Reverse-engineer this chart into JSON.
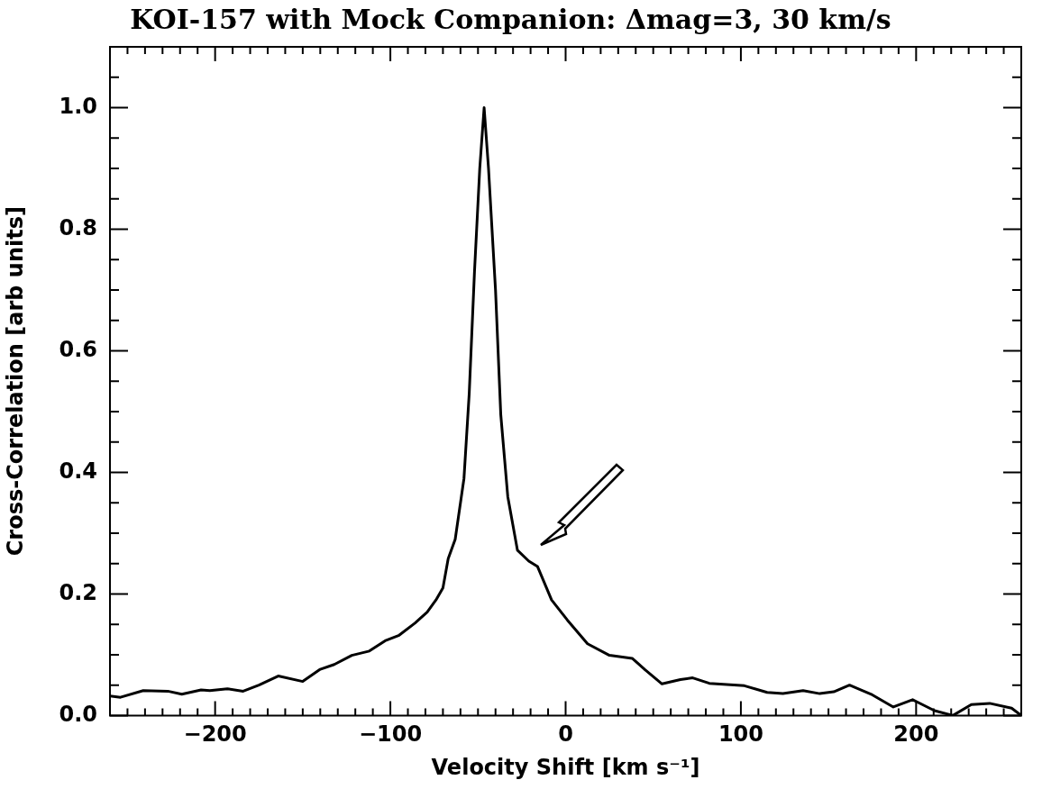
{
  "chart_data": {
    "type": "line",
    "title": "KOI-157 with Mock Companion: Δmag=3, 30 km/s",
    "xlabel": "Velocity Shift [km s⁻¹]",
    "ylabel": "Cross-Correlation [arb units]",
    "x": [
      -260,
      -254,
      -241,
      -227,
      -219,
      -208,
      -203,
      -193,
      -184,
      -175,
      -164,
      -150,
      -140,
      -132,
      -122,
      -112,
      -103,
      -95,
      -86,
      -79,
      -74,
      -70,
      -67,
      -63,
      -58,
      -55,
      -52,
      -49,
      -46.5,
      -44,
      -40,
      -37,
      -33,
      -27.5,
      -21,
      -16,
      -8,
      1,
      12.5,
      25,
      38,
      45.5,
      55,
      65.5,
      72.5,
      82,
      102,
      115,
      124,
      135.5,
      145,
      153,
      162,
      175,
      187,
      198,
      210.5,
      221,
      231.5,
      242,
      254.5,
      260
    ],
    "series": [
      {
        "color": "#000000",
        "values": [
          0.032,
          0.03,
          0.041,
          0.04,
          0.035,
          0.042,
          0.041,
          0.044,
          0.04,
          0.05,
          0.065,
          0.056,
          0.076,
          0.084,
          0.099,
          0.106,
          0.123,
          0.132,
          0.152,
          0.17,
          0.19,
          0.21,
          0.258,
          0.29,
          0.39,
          0.53,
          0.73,
          0.9,
          1.0,
          0.9,
          0.7,
          0.495,
          0.36,
          0.272,
          0.254,
          0.245,
          0.19,
          0.157,
          0.118,
          0.099,
          0.094,
          0.075,
          0.052,
          0.059,
          0.062,
          0.053,
          0.049,
          0.038,
          0.036,
          0.041,
          0.036,
          0.039,
          0.05,
          0.034,
          0.014,
          0.026,
          0.008,
          0.0,
          0.018,
          0.02,
          0.012,
          0.0
        ]
      }
    ],
    "xlim": [
      -260,
      260
    ],
    "xticks": [
      {
        "value": -260,
        "label": null
      },
      {
        "value": -250,
        "label": null
      },
      {
        "value": -240,
        "label": null
      },
      {
        "value": -230,
        "label": null
      },
      {
        "value": -220,
        "label": null
      },
      {
        "value": -210,
        "label": null
      },
      -200,
      {
        "value": -190,
        "label": null
      },
      {
        "value": -180,
        "label": null
      },
      {
        "value": -170,
        "label": null
      },
      {
        "value": -160,
        "label": null
      },
      {
        "value": -150,
        "label": null
      },
      {
        "value": -140,
        "label": null
      },
      {
        "value": -130,
        "label": null
      },
      {
        "value": -120,
        "label": null
      },
      {
        "value": -110,
        "label": null
      },
      -100,
      {
        "value": -90,
        "label": null
      },
      {
        "value": -80,
        "label": null
      },
      {
        "value": -70,
        "label": null
      },
      {
        "value": -60,
        "label": null
      },
      {
        "value": -50,
        "label": null
      },
      {
        "value": -40,
        "label": null
      },
      {
        "value": -30,
        "label": null
      },
      {
        "value": -20,
        "label": null
      },
      {
        "value": -10,
        "label": null
      },
      0,
      {
        "value": 10,
        "label": null
      },
      {
        "value": 20,
        "label": null
      },
      {
        "value": 30,
        "label": null
      },
      {
        "value": 40,
        "label": null
      },
      {
        "value": 50,
        "label": null
      },
      {
        "value": 60,
        "label": null
      },
      {
        "value": 70,
        "label": null
      },
      {
        "value": 80,
        "label": null
      },
      {
        "value": 90,
        "label": null
      },
      100,
      {
        "value": 110,
        "label": null
      },
      {
        "value": 120,
        "label": null
      },
      {
        "value": 130,
        "label": null
      },
      {
        "value": 140,
        "label": null
      },
      {
        "value": 150,
        "label": null
      },
      {
        "value": 160,
        "label": null
      },
      {
        "value": 170,
        "label": null
      },
      {
        "value": 180,
        "label": null
      },
      {
        "value": 190,
        "label": null
      },
      200,
      {
        "value": 210,
        "label": null
      },
      {
        "value": 220,
        "label": null
      },
      {
        "value": 230,
        "label": null
      },
      {
        "value": 240,
        "label": null
      },
      {
        "value": 250,
        "label": null
      },
      {
        "value": 260,
        "label": null
      }
    ],
    "ylim": [
      0,
      1.1
    ],
    "yticks": [
      {
        "value": 0,
        "label": "0.0"
      },
      {
        "value": 0.05,
        "label": null
      },
      {
        "value": 0.1,
        "label": null
      },
      {
        "value": 0.15,
        "label": null
      },
      {
        "value": 0.2,
        "label": "0.2"
      },
      {
        "value": 0.25,
        "label": null
      },
      {
        "value": 0.3,
        "label": null
      },
      {
        "value": 0.35,
        "label": null
      },
      {
        "value": 0.4,
        "label": "0.4"
      },
      {
        "value": 0.45,
        "label": null
      },
      {
        "value": 0.5,
        "label": null
      },
      {
        "value": 0.55,
        "label": null
      },
      {
        "value": 0.6,
        "label": "0.6"
      },
      {
        "value": 0.65,
        "label": null
      },
      {
        "value": 0.7,
        "label": null
      },
      {
        "value": 0.75,
        "label": null
      },
      {
        "value": 0.8,
        "label": "0.8"
      },
      {
        "value": 0.85,
        "label": null
      },
      {
        "value": 0.9,
        "label": null
      },
      {
        "value": 0.95,
        "label": null
      },
      {
        "value": 1.0,
        "label": "1.0"
      },
      {
        "value": 1.05,
        "label": null
      }
    ],
    "grid": false,
    "legend": false,
    "marker": "none",
    "line_style": "solid"
  }
}
